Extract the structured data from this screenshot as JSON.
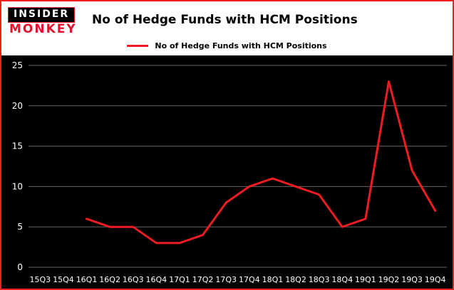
{
  "header": {
    "logo_top": "INSIDER",
    "logo_bottom": "MONKEY",
    "title": "No of Hedge Funds with HCM Positions"
  },
  "legend": {
    "label": "No of Hedge Funds with HCM Positions"
  },
  "chart_data": {
    "type": "line",
    "title": "No of Hedge Funds with HCM Positions",
    "categories": [
      "15Q3",
      "15Q4",
      "16Q1",
      "16Q2",
      "16Q3",
      "16Q4",
      "17Q1",
      "17Q2",
      "17Q3",
      "17Q4",
      "18Q1",
      "18Q2",
      "18Q3",
      "18Q4",
      "19Q1",
      "19Q2",
      "19Q3",
      "19Q4"
    ],
    "values": [
      null,
      null,
      6,
      5,
      5,
      3,
      3,
      4,
      8,
      10,
      11,
      10,
      9,
      5,
      6,
      23,
      12,
      7
    ],
    "xlabel": "",
    "ylabel": "",
    "ylim": [
      0,
      25
    ],
    "yticks": [
      0,
      5,
      10,
      15,
      20,
      25
    ],
    "grid": true,
    "legend_position": "top",
    "line_color": "#ed1c24",
    "background_color": "#000000",
    "grid_color": "#666666",
    "tick_color": "#ffffff",
    "border_color": "#ed2024"
  }
}
